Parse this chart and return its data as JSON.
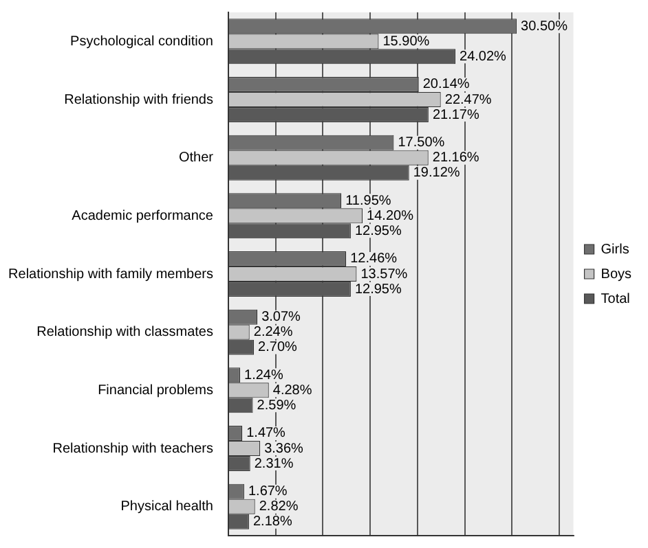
{
  "chart_data": {
    "type": "bar",
    "orientation": "horizontal",
    "categories": [
      "Psychological condition",
      "Relationship with friends",
      "Other",
      "Academic performance",
      "Relationship with family members",
      "Relationship with classmates",
      "Financial problems",
      "Relationship with teachers",
      "Physical health"
    ],
    "series": [
      {
        "name": "Girls",
        "color": "#6f6f6f",
        "values": [
          30.5,
          20.14,
          17.5,
          11.95,
          12.46,
          3.07,
          1.24,
          1.47,
          1.67
        ],
        "value_labels": [
          "30.50%",
          "20.14%",
          "17.50%",
          "11.95%",
          "12.46%",
          "3.07%",
          "1.24%",
          "1.47%",
          "1.67%"
        ]
      },
      {
        "name": "Boys",
        "color": "#c4c4c4",
        "values": [
          15.9,
          22.47,
          21.16,
          14.2,
          13.57,
          2.24,
          4.28,
          3.36,
          2.82
        ],
        "value_labels": [
          "15.90%",
          "22.47%",
          "21.16%",
          "14.20%",
          "13.57%",
          "2.24%",
          "4.28%",
          "3.36%",
          "2.82%"
        ]
      },
      {
        "name": "Total",
        "color": "#595959",
        "values": [
          24.02,
          21.17,
          19.12,
          12.95,
          12.95,
          2.7,
          2.59,
          2.31,
          2.18
        ],
        "value_labels": [
          "24.02%",
          "21.17%",
          "19.12%",
          "12.95%",
          "12.95%",
          "2.70%",
          "2.59%",
          "2.31%",
          "2.18%"
        ]
      }
    ],
    "xlim": [
      0,
      36.5
    ],
    "xticks": [
      {
        "value": 0,
        "label": null
      },
      {
        "value": 5,
        "label": null
      },
      {
        "value": 10,
        "label": null
      },
      {
        "value": 15,
        "label": null
      },
      {
        "value": 20,
        "label": null
      },
      {
        "value": 25,
        "label": null
      },
      {
        "value": 30,
        "label": null
      },
      {
        "value": 35,
        "label": null
      }
    ],
    "tick_labels": "y",
    "grid": "x",
    "legend": "right"
  }
}
